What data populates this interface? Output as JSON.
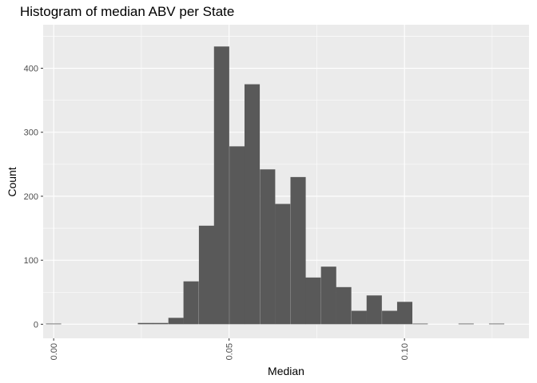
{
  "chart_data": {
    "type": "bar",
    "title": "Histogram of median ABV per State",
    "xlabel": "Median",
    "ylabel": "Count",
    "xlim": [
      -0.003,
      0.1355
    ],
    "ylim": [
      -22,
      468
    ],
    "bin_width": 0.00435,
    "bins": [
      {
        "x_start": -0.0022,
        "count": 1
      },
      {
        "x_start": 0.024,
        "count": 2
      },
      {
        "x_start": 0.0283,
        "count": 2
      },
      {
        "x_start": 0.0327,
        "count": 10
      },
      {
        "x_start": 0.037,
        "count": 67
      },
      {
        "x_start": 0.0414,
        "count": 154
      },
      {
        "x_start": 0.0457,
        "count": 434
      },
      {
        "x_start": 0.0501,
        "count": 278
      },
      {
        "x_start": 0.0544,
        "count": 375
      },
      {
        "x_start": 0.0588,
        "count": 242
      },
      {
        "x_start": 0.0631,
        "count": 188
      },
      {
        "x_start": 0.0675,
        "count": 230
      },
      {
        "x_start": 0.0718,
        "count": 73
      },
      {
        "x_start": 0.0762,
        "count": 90
      },
      {
        "x_start": 0.0805,
        "count": 58
      },
      {
        "x_start": 0.0849,
        "count": 21
      },
      {
        "x_start": 0.0892,
        "count": 45
      },
      {
        "x_start": 0.0936,
        "count": 21
      },
      {
        "x_start": 0.0979,
        "count": 35
      },
      {
        "x_start": 0.1023,
        "count": 1
      },
      {
        "x_start": 0.1154,
        "count": 1
      },
      {
        "x_start": 0.1241,
        "count": 1
      }
    ],
    "x_ticks": [
      {
        "value": 0.0,
        "label": "0.00"
      },
      {
        "value": 0.05,
        "label": "0.05"
      },
      {
        "value": 0.1,
        "label": "0.10"
      }
    ],
    "y_ticks": [
      {
        "value": 0,
        "label": "0"
      },
      {
        "value": 100,
        "label": "100"
      },
      {
        "value": 200,
        "label": "200"
      },
      {
        "value": 300,
        "label": "300"
      },
      {
        "value": 400,
        "label": "400"
      }
    ],
    "grid": true,
    "colors": {
      "panel_background": "#EBEBEB",
      "grid_major": "#FFFFFF",
      "bar_fill": "#595959",
      "tick_text": "#4D4D4D",
      "tick_mark": "#333333"
    }
  }
}
